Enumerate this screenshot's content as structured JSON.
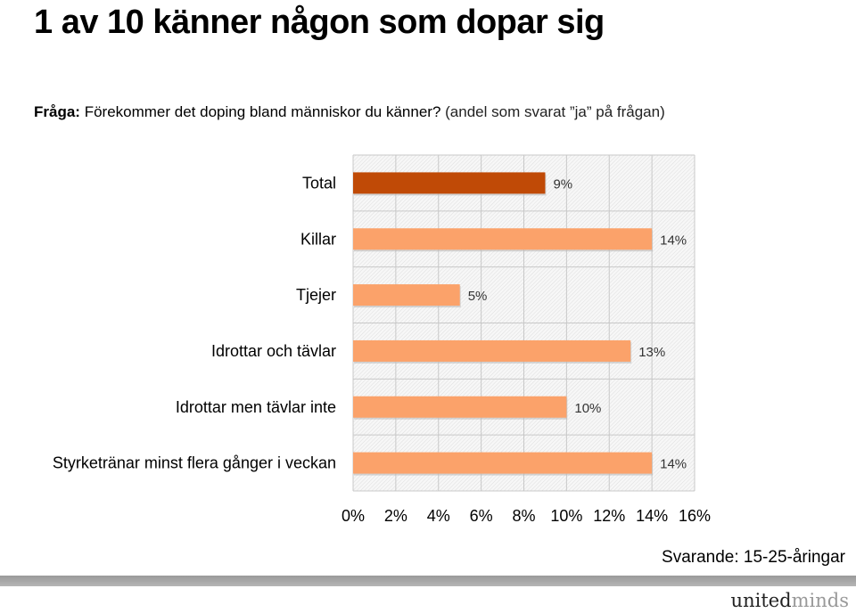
{
  "page": {
    "title": "1 av 10 känner någon som dopar sig",
    "question_label": "Fråga:",
    "question_text": " Förekommer det doping bland människor du känner?",
    "question_note": " (andel som svarat ”ja” på frågan)",
    "respondents": "Svarande: 15-25-åringar",
    "logo_part1": "united",
    "logo_part2": "minds"
  },
  "colors": {
    "highlight": "#c04a06",
    "bar": "#fba26a",
    "grid": "#c8c8c8"
  },
  "chart_data": {
    "type": "bar",
    "orientation": "horizontal",
    "categories": [
      "Total",
      "Killar",
      "Tjejer",
      "Idrottar och tävlar",
      "Idrottar men tävlar inte",
      "Styrketränar minst flera gånger i veckan"
    ],
    "values": [
      9,
      14,
      5,
      13,
      10,
      14
    ],
    "data_labels": [
      "9%",
      "14%",
      "5%",
      "13%",
      "10%",
      "14%"
    ],
    "highlight_index": 0,
    "xlim": [
      0,
      16
    ],
    "xticks": [
      0,
      2,
      4,
      6,
      8,
      10,
      12,
      14,
      16
    ],
    "xtick_labels": [
      "0%",
      "2%",
      "4%",
      "6%",
      "8%",
      "10%",
      "12%",
      "14%",
      "16%"
    ],
    "grid": true,
    "legend": "none"
  }
}
